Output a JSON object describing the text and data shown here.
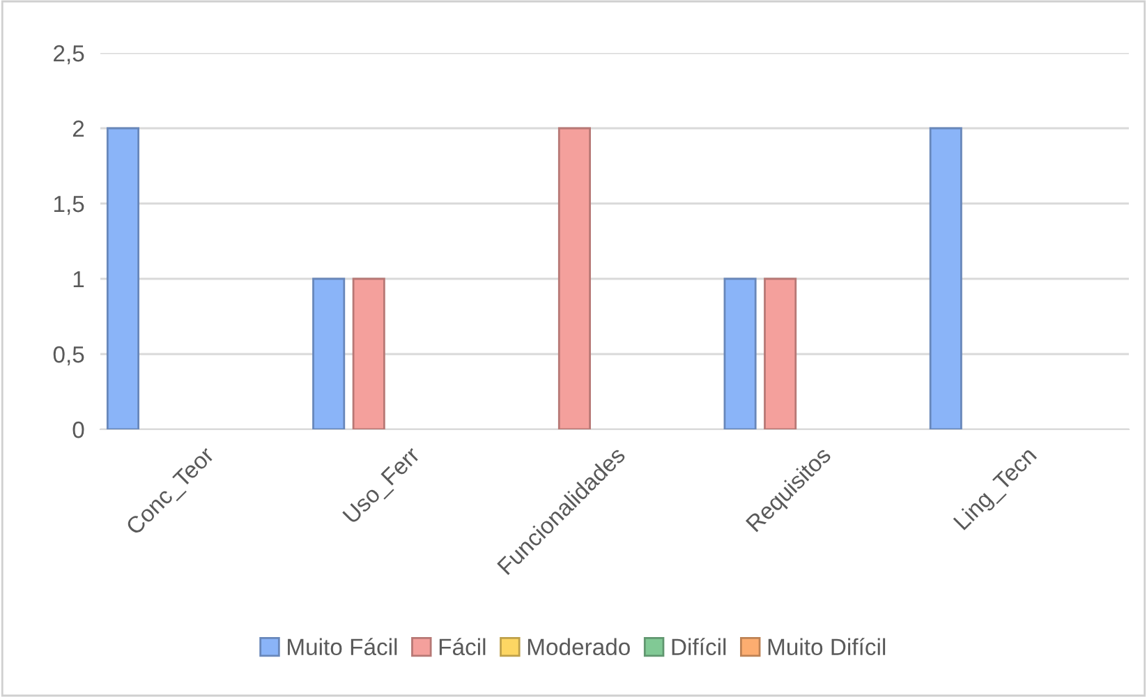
{
  "chart_data": {
    "type": "bar",
    "categories": [
      "Conc_Teor",
      "Uso_Ferr",
      "Funcionalidades",
      "Requisitos",
      "Ling_Tecn"
    ],
    "series": [
      {
        "name": "Muito Fácil",
        "color": "#8ab4f8",
        "values": [
          2,
          1,
          0,
          1,
          2
        ]
      },
      {
        "name": "Fácil",
        "color": "#f4a09c",
        "values": [
          0,
          1,
          2,
          1,
          0
        ]
      },
      {
        "name": "Moderado",
        "color": "#fdd663",
        "values": [
          0,
          0,
          0,
          0,
          0
        ]
      },
      {
        "name": "Difícil",
        "color": "#81c995",
        "values": [
          0,
          0,
          0,
          0,
          0
        ]
      },
      {
        "name": "Muito Difícil",
        "color": "#fcad70",
        "values": [
          0,
          0,
          0,
          0,
          0
        ]
      }
    ],
    "ylim": [
      0,
      2.5
    ],
    "yticks": [
      {
        "value": 0,
        "label": "0"
      },
      {
        "value": 0.5,
        "label": "0,5"
      },
      {
        "value": 1,
        "label": "1"
      },
      {
        "value": 1.5,
        "label": "1,5"
      },
      {
        "value": 2,
        "label": "2"
      },
      {
        "value": 2.5,
        "label": "2,5"
      }
    ],
    "grid": "y",
    "legend": "bottom"
  }
}
